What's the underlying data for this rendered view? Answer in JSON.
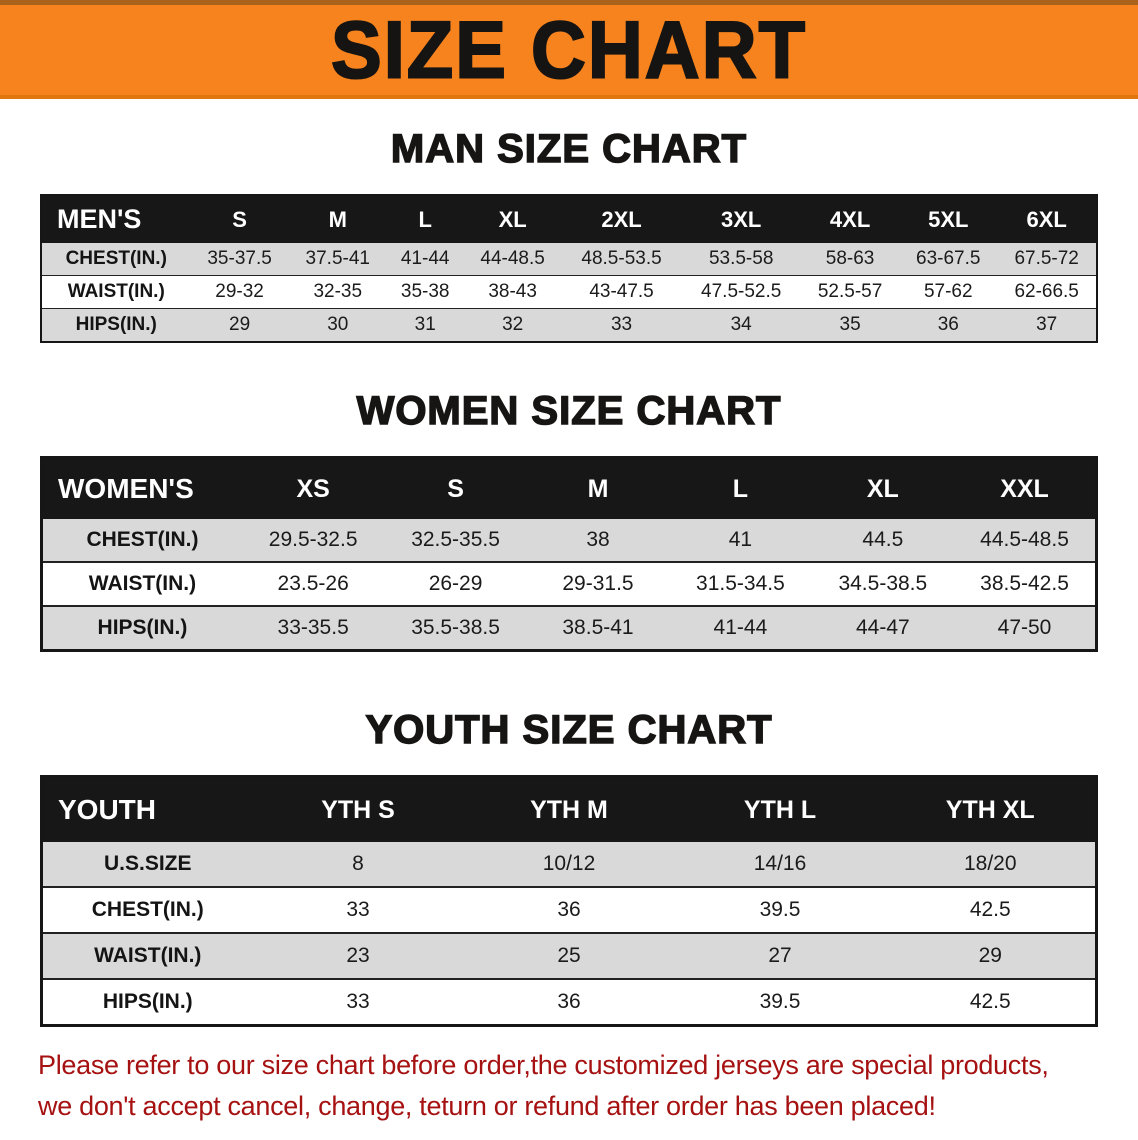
{
  "banner": {
    "title": "SIZE CHART"
  },
  "sections": [
    {
      "heading": "MAN SIZE CHART",
      "table": {
        "header": [
          "MEN'S",
          "S",
          "M",
          "L",
          "XL",
          "2XL",
          "3XL",
          "4XL",
          "5XL",
          "6XL"
        ],
        "rows": [
          {
            "label": "CHEST(IN.)",
            "cells": [
              "35-37.5",
              "37.5-41",
              "41-44",
              "44-48.5",
              "48.5-53.5",
              "53.5-58",
              "58-63",
              "63-67.5",
              "67.5-72"
            ]
          },
          {
            "label": "WAIST(IN.)",
            "cells": [
              "29-32",
              "32-35",
              "35-38",
              "38-43",
              "43-47.5",
              "47.5-52.5",
              "52.5-57",
              "57-62",
              "62-66.5"
            ]
          },
          {
            "label": "HIPS(IN.)",
            "cells": [
              "29",
              "30",
              "31",
              "32",
              "33",
              "34",
              "35",
              "36",
              "37"
            ]
          }
        ]
      }
    },
    {
      "heading": "WOMEN SIZE CHART",
      "table": {
        "header": [
          "WOMEN'S",
          "XS",
          "S",
          "M",
          "L",
          "XL",
          "XXL"
        ],
        "rows": [
          {
            "label": "CHEST(IN.)",
            "cells": [
              "29.5-32.5",
              "32.5-35.5",
              "38",
              "41",
              "44.5",
              "44.5-48.5"
            ]
          },
          {
            "label": "WAIST(IN.)",
            "cells": [
              "23.5-26",
              "26-29",
              "29-31.5",
              "31.5-34.5",
              "34.5-38.5",
              "38.5-42.5"
            ]
          },
          {
            "label": "HIPS(IN.)",
            "cells": [
              "33-35.5",
              "35.5-38.5",
              "38.5-41",
              "41-44",
              "44-47",
              "47-50"
            ]
          }
        ]
      }
    },
    {
      "heading": "YOUTH SIZE CHART",
      "table": {
        "header": [
          "YOUTH",
          "YTH S",
          "YTH M",
          "YTH L",
          "YTH XL"
        ],
        "rows": [
          {
            "label": "U.S.SIZE",
            "cells": [
              "8",
              "10/12",
              "14/16",
              "18/20"
            ]
          },
          {
            "label": "CHEST(IN.)",
            "cells": [
              "33",
              "36",
              "39.5",
              "42.5"
            ]
          },
          {
            "label": "WAIST(IN.)",
            "cells": [
              "23",
              "25",
              "27",
              "29"
            ]
          },
          {
            "label": "HIPS(IN.)",
            "cells": [
              "33",
              "36",
              "39.5",
              "42.5"
            ]
          }
        ]
      }
    }
  ],
  "disclaimer": {
    "lines": [
      "Please refer to our size chart before order,the customized jerseys are special products,",
      "we don't accept cancel, change, teturn or refund after order has been placed!"
    ]
  },
  "colors": {
    "banner_orange": "#f6831d",
    "header_black": "#171717",
    "stripe_gray": "#d9d9d9",
    "disclaimer_red": "#a61111"
  }
}
